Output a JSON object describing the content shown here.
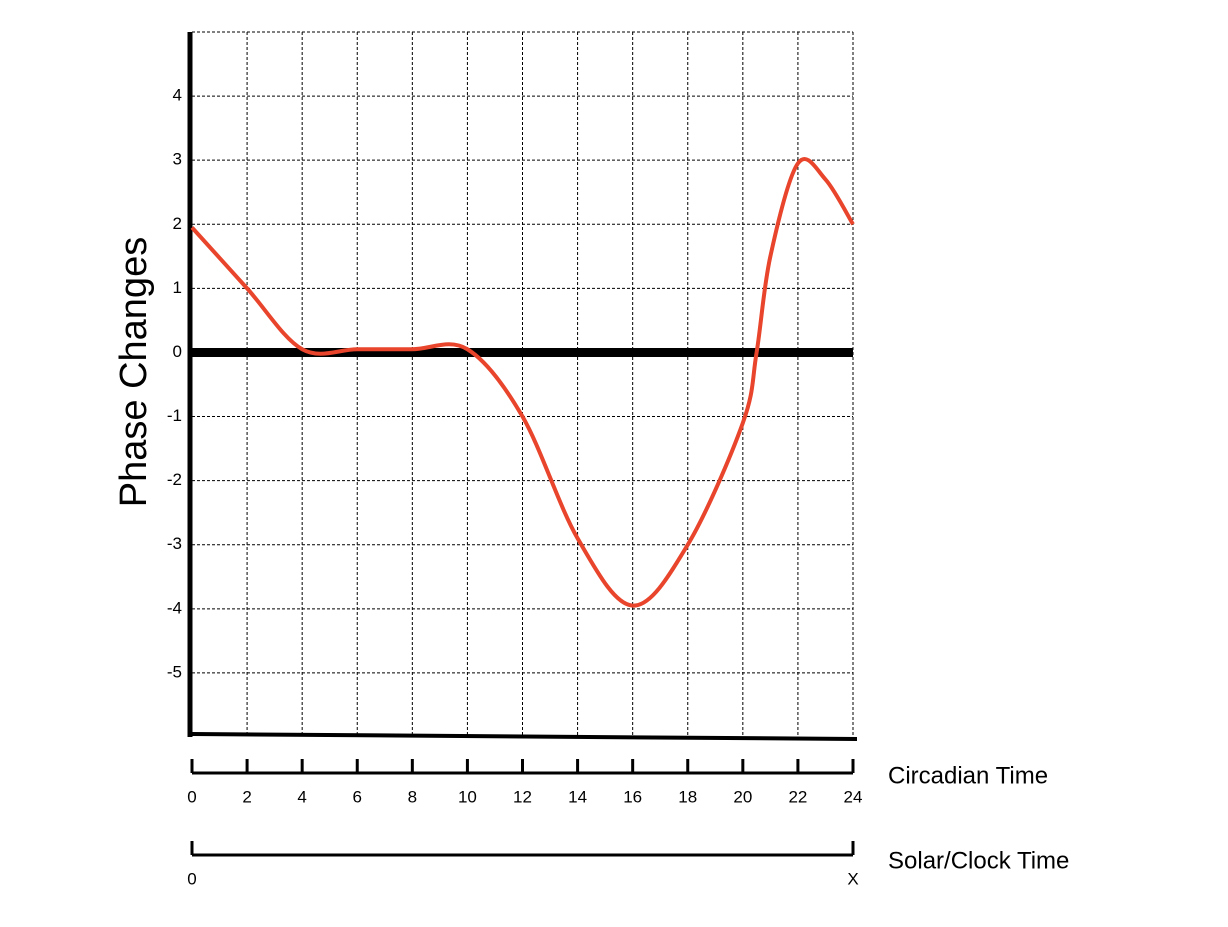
{
  "chart_data": {
    "type": "line",
    "ylabel": "Phase Changes",
    "xlabel": "Circadian Time",
    "x": [
      0,
      2,
      4,
      6,
      8,
      10,
      12,
      14,
      16,
      18,
      20,
      20.5,
      21,
      22,
      23,
      24
    ],
    "series": [
      {
        "color": "#e8452c",
        "values": [
          1.95,
          1,
          0.05,
          0.05,
          0.05,
          0.05,
          -1,
          -2.9,
          -3.95,
          -3,
          -1.1,
          0,
          1.5,
          2.95,
          2.7,
          2
        ]
      }
    ],
    "xlim": [
      0,
      24
    ],
    "xticks": [
      0,
      2,
      4,
      6,
      8,
      10,
      12,
      14,
      16,
      18,
      20,
      22,
      24
    ],
    "ylim": [
      -6,
      5
    ],
    "yticks": [
      -5,
      -4,
      -3,
      -2,
      -1,
      0,
      1,
      2,
      3,
      4
    ],
    "grid": true,
    "secondary_axis": {
      "label": "Solar/Clock Time",
      "ticks": [
        "0",
        "X"
      ]
    }
  }
}
